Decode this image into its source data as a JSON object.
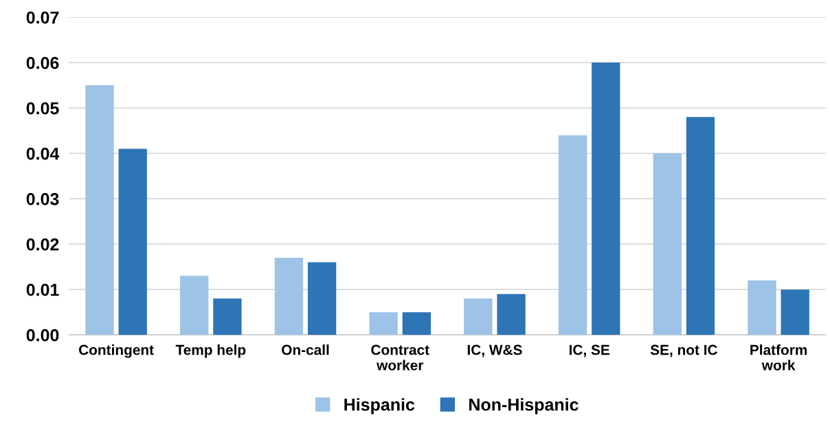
{
  "chart_data": {
    "type": "bar",
    "categories": [
      "Contingent",
      "Temp help",
      "On-call",
      "Contract\nworker",
      "IC, W&S",
      "IC, SE",
      "SE, not IC",
      "Platform\nwork"
    ],
    "series": [
      {
        "name": "Hispanic",
        "color": "#9dc3e6",
        "values": [
          0.055,
          0.013,
          0.017,
          0.005,
          0.008,
          0.044,
          0.04,
          0.012
        ]
      },
      {
        "name": "Non-Hispanic",
        "color": "#2e75b6",
        "values": [
          0.041,
          0.008,
          0.016,
          0.005,
          0.009,
          0.06,
          0.048,
          0.01
        ]
      }
    ],
    "ylim": [
      0,
      0.07
    ],
    "yticks": [
      {
        "value": 0,
        "label": "0.00"
      },
      {
        "value": 0.01,
        "label": "0.01"
      },
      {
        "value": 0.02,
        "label": "0.02"
      },
      {
        "value": 0.03,
        "label": "0.03"
      },
      {
        "value": 0.04,
        "label": "0.04"
      },
      {
        "value": 0.05,
        "label": "0.05"
      },
      {
        "value": 0.06,
        "label": "0.06"
      },
      {
        "value": 0.07,
        "label": "0.07"
      }
    ],
    "grid": "y",
    "legend": "bottom"
  }
}
